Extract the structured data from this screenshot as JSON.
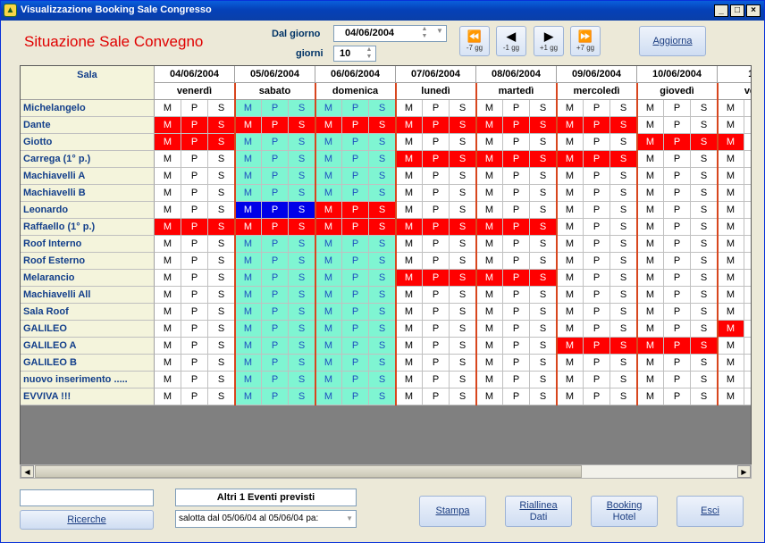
{
  "window": {
    "title": "Visualizzazione Booking Sale Congresso",
    "min": "_",
    "max": "□",
    "close": "×"
  },
  "header": {
    "title": "Situazione Sale Convegno",
    "dal_giorno_label": "Dal giorno",
    "dal_giorno_value": "04/06/2004",
    "giorni_label": "giorni",
    "giorni_value": "10"
  },
  "nav": [
    {
      "icon": "⏪",
      "label": "-7 gg"
    },
    {
      "icon": "◀",
      "label": "-1 gg"
    },
    {
      "icon": "▶",
      "label": "+1 gg"
    },
    {
      "icon": "⏩",
      "label": "+7 gg"
    }
  ],
  "aggiorna_label": "Aggiorna",
  "grid": {
    "sala_header": "Sala",
    "slots": [
      "M",
      "P",
      "S"
    ],
    "days": [
      {
        "date": "04/06/2004",
        "weekday": "venerdì",
        "weekend": false
      },
      {
        "date": "05/06/2004",
        "weekday": "sabato",
        "weekend": true
      },
      {
        "date": "06/06/2004",
        "weekday": "domenica",
        "weekend": true
      },
      {
        "date": "07/06/2004",
        "weekday": "lunedì",
        "weekend": false
      },
      {
        "date": "08/06/2004",
        "weekday": "martedì",
        "weekend": false
      },
      {
        "date": "09/06/2004",
        "weekday": "mercoledì",
        "weekend": false
      },
      {
        "date": "10/06/2004",
        "weekday": "giovedì",
        "weekend": false
      },
      {
        "date": "11/0",
        "weekday": "vener",
        "weekend": false
      }
    ],
    "rooms": [
      {
        "name": "Michelangelo",
        "booked": []
      },
      {
        "name": "Dante",
        "booked": [
          0,
          1,
          2,
          3,
          4,
          5,
          6,
          7,
          8,
          9,
          10,
          11,
          12,
          13,
          14,
          15,
          16,
          17
        ]
      },
      {
        "name": "Giotto",
        "booked": [
          0,
          1,
          2,
          18,
          19,
          20,
          21
        ]
      },
      {
        "name": "Carrega (1° p.)",
        "booked": [
          9,
          10,
          11,
          12,
          13,
          14,
          15,
          16,
          17
        ]
      },
      {
        "name": "Machiavelli A",
        "booked": []
      },
      {
        "name": "Machiavelli B",
        "booked": []
      },
      {
        "name": "Leonardo",
        "booked": [
          6,
          7,
          8
        ],
        "selected": [
          3,
          4,
          5
        ]
      },
      {
        "name": "Raffaello (1° p.)",
        "booked": [
          0,
          1,
          2,
          3,
          4,
          5,
          6,
          7,
          8,
          9,
          10,
          11,
          12,
          13,
          14
        ]
      },
      {
        "name": "Roof Interno",
        "booked": []
      },
      {
        "name": "Roof Esterno",
        "booked": []
      },
      {
        "name": "Melarancio",
        "booked": [
          9,
          10,
          11,
          12,
          13,
          14
        ]
      },
      {
        "name": "Machiavelli All",
        "booked": []
      },
      {
        "name": "Sala Roof",
        "booked": []
      },
      {
        "name": "GALILEO",
        "booked": [
          21
        ]
      },
      {
        "name": "GALILEO A",
        "booked": [
          15,
          16,
          17,
          18,
          19,
          20
        ]
      },
      {
        "name": "GALILEO B",
        "booked": []
      },
      {
        "name": "nuovo inserimento .....",
        "booked": []
      },
      {
        "name": "EVVIVA !!!",
        "booked": []
      }
    ]
  },
  "colors": {
    "booked": "#FF0000",
    "weekend": "#7FF5D2",
    "selected": "#0000E8",
    "free": "#FFFFFF"
  },
  "footer": {
    "ricerche_label": "Ricerche",
    "eventi_label": "Altri 1  Eventi previsti",
    "eventi_value": "salotta   dal 05/06/04 al 05/06/04  pa:",
    "stampa_label": "Stampa",
    "riallinea_label_1": "Riallinea",
    "riallinea_label_2": "Dati",
    "booking_label_1": "Booking",
    "booking_label_2": "Hotel",
    "esci_label": "Esci"
  }
}
